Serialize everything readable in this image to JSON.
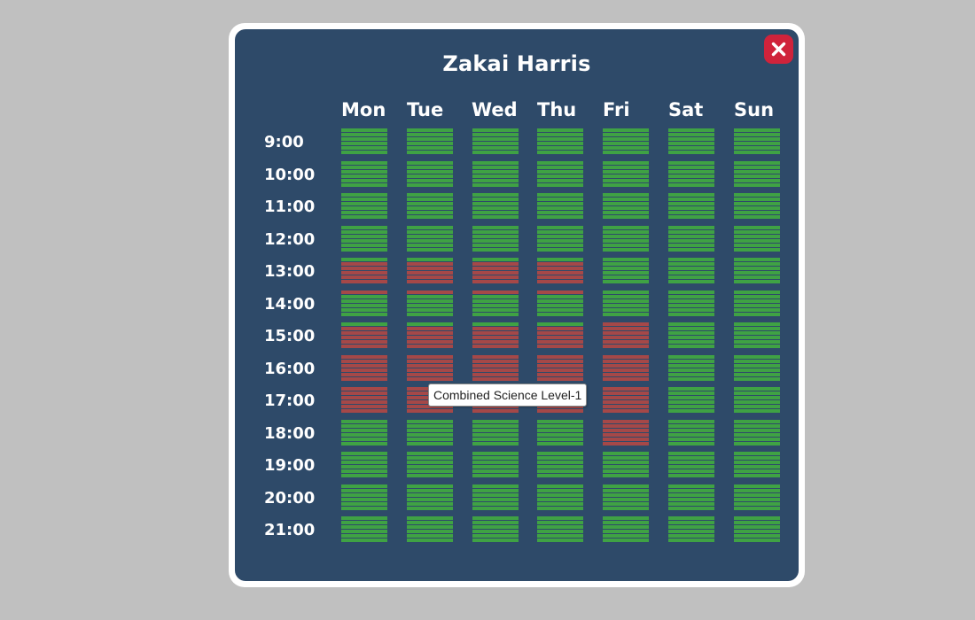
{
  "window": {
    "title": "Zakai Harris"
  },
  "close_icon": "close-icon",
  "colors": {
    "free": "#3fa244",
    "busy": "#a54848",
    "panel": "#2e4a69",
    "close": "#d0233b"
  },
  "days": [
    "Mon",
    "Tue",
    "Wed",
    "Thu",
    "Fri",
    "Sat",
    "Sun"
  ],
  "hours": [
    "9:00",
    "10:00",
    "11:00",
    "12:00",
    "13:00",
    "14:00",
    "15:00",
    "16:00",
    "17:00",
    "18:00",
    "19:00",
    "20:00",
    "21:00"
  ],
  "schedule": {
    "Mon": [
      "gggggg",
      "gggggg",
      "gggggg",
      "gggggg",
      "grrrrr",
      "rggggg",
      "grrrrr",
      "rrrrrr",
      "rrrrrr",
      "gggggg",
      "gggggg",
      "gggggg",
      "gggggg"
    ],
    "Tue": [
      "gggggg",
      "gggggg",
      "gggggg",
      "gggggg",
      "grrrrr",
      "rggggg",
      "grrrrr",
      "rrrrrr",
      "rrrrrr",
      "gggggg",
      "gggggg",
      "gggggg",
      "gggggg"
    ],
    "Wed": [
      "gggggg",
      "gggggg",
      "gggggg",
      "gggggg",
      "grrrrr",
      "rggggg",
      "grrrrr",
      "rrrrrr",
      "rrrrrr",
      "gggggg",
      "gggggg",
      "gggggg",
      "gggggg"
    ],
    "Thu": [
      "gggggg",
      "gggggg",
      "gggggg",
      "gggggg",
      "grrrrr",
      "rggggg",
      "grrrrr",
      "rrrrrr",
      "rrrrrr",
      "gggggg",
      "gggggg",
      "gggggg",
      "gggggg"
    ],
    "Fri": [
      "gggggg",
      "gggggg",
      "gggggg",
      "gggggg",
      "gggggg",
      "gggggg",
      "rrrrrr",
      "rrrrrr",
      "rrrrrr",
      "rrrrrr",
      "gggggg",
      "gggggg",
      "gggggg"
    ],
    "Sat": [
      "gggggg",
      "gggggg",
      "gggggg",
      "gggggg",
      "gggggg",
      "gggggg",
      "gggggg",
      "gggggg",
      "gggggg",
      "gggggg",
      "gggggg",
      "gggggg",
      "gggggg"
    ],
    "Sun": [
      "gggggg",
      "gggggg",
      "gggggg",
      "gggggg",
      "gggggg",
      "gggggg",
      "gggggg",
      "gggggg",
      "gggggg",
      "gggggg",
      "gggggg",
      "gggggg",
      "gggggg"
    ]
  },
  "tooltip": {
    "text": "Combined Science Level-1"
  }
}
